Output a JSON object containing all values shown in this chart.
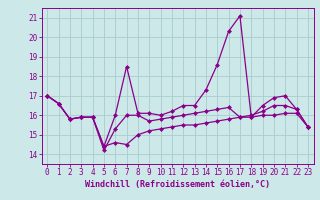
{
  "xlabel": "Windchill (Refroidissement éolien,°C)",
  "x": [
    0,
    1,
    2,
    3,
    4,
    5,
    6,
    7,
    8,
    9,
    10,
    11,
    12,
    13,
    14,
    15,
    16,
    17,
    18,
    19,
    20,
    21,
    22,
    23
  ],
  "line1": [
    17.0,
    16.6,
    15.8,
    15.9,
    15.9,
    14.4,
    16.0,
    18.5,
    16.1,
    16.1,
    16.0,
    16.2,
    16.5,
    16.5,
    17.3,
    18.6,
    20.3,
    21.1,
    15.9,
    16.5,
    16.9,
    17.0,
    16.3,
    15.4
  ],
  "line2": [
    17.0,
    16.6,
    15.8,
    15.9,
    15.9,
    14.2,
    15.3,
    16.0,
    16.0,
    15.7,
    15.8,
    15.9,
    16.0,
    16.1,
    16.2,
    16.3,
    16.4,
    15.9,
    16.0,
    16.2,
    16.5,
    16.5,
    16.3,
    15.4
  ],
  "line3": [
    17.0,
    16.6,
    15.8,
    15.9,
    15.9,
    14.4,
    14.6,
    14.5,
    15.0,
    15.2,
    15.3,
    15.4,
    15.5,
    15.5,
    15.6,
    15.7,
    15.8,
    15.9,
    15.9,
    16.0,
    16.0,
    16.1,
    16.1,
    15.4
  ],
  "line_color": "#8b008b",
  "bg_color": "#cce8e8",
  "grid_color": "#aacccc",
  "ylim": [
    13.5,
    21.5
  ],
  "xlim": [
    -0.5,
    23.5
  ],
  "yticks": [
    14,
    15,
    16,
    17,
    18,
    19,
    20,
    21
  ],
  "xticks": [
    0,
    1,
    2,
    3,
    4,
    5,
    6,
    7,
    8,
    9,
    10,
    11,
    12,
    13,
    14,
    15,
    16,
    17,
    18,
    19,
    20,
    21,
    22,
    23
  ],
  "tick_fontsize": 5.5,
  "xlabel_fontsize": 6.0
}
